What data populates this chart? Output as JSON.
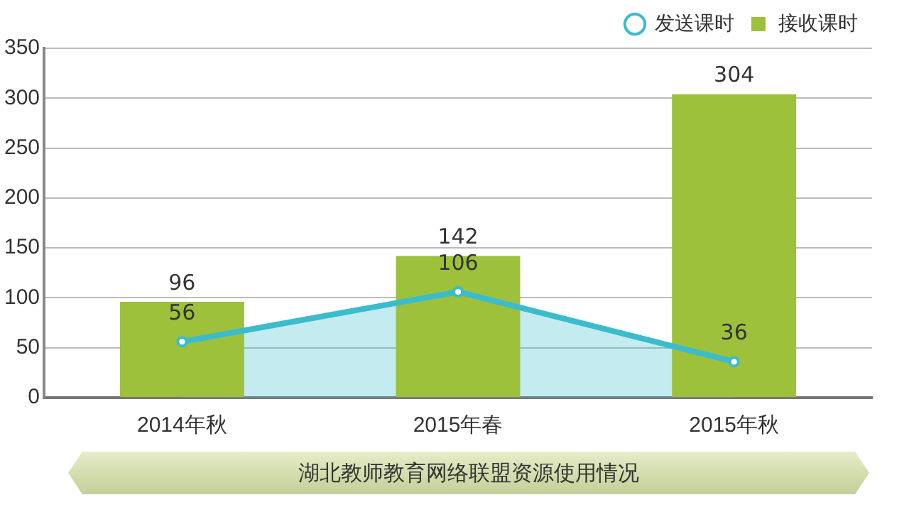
{
  "chart_data": {
    "type": "bar",
    "title": "湖北教师教育网络联盟资源使用情况",
    "categories": [
      "2014年秋",
      "2015年春",
      "2015年秋"
    ],
    "series": [
      {
        "name": "发送课时",
        "type": "area",
        "color": "#3bbccc",
        "values": [
          56,
          106,
          36
        ]
      },
      {
        "name": "接收课时",
        "color": "#9dc13b",
        "values": [
          96,
          142,
          304
        ]
      }
    ],
    "ylim": [
      0,
      350
    ],
    "yticks": [
      0,
      50,
      100,
      150,
      200,
      250,
      300,
      350
    ],
    "grid": "y",
    "legend": "top right",
    "marker": "circle",
    "data_labels": true
  }
}
